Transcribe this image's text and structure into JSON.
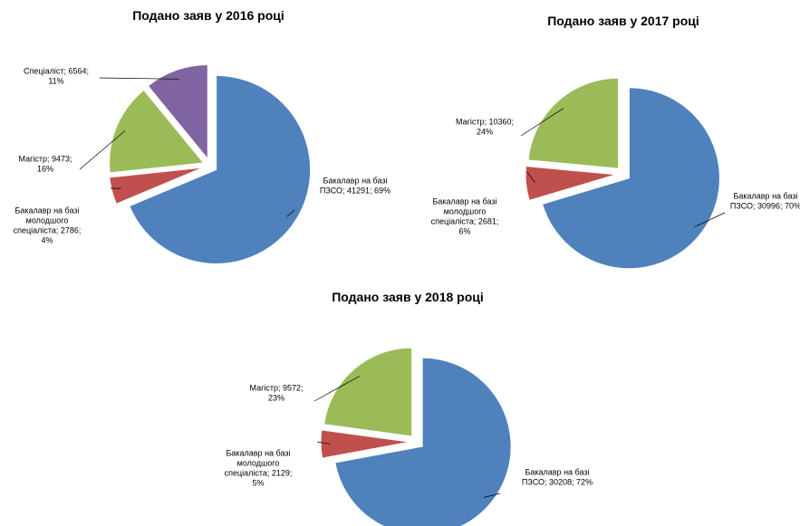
{
  "chart_data": [
    {
      "type": "pie",
      "title": "Подано заяв у 2016 році",
      "values": [
        41291,
        2786,
        9473,
        6564
      ],
      "value_labels": [
        [
          "Бакалавр на базі",
          "ПЗСО; 41291; 69%"
        ],
        [
          "Бакалавр на базі",
          "молодшого",
          "спеціаліста; 2786;",
          "4%"
        ],
        [
          "Магістр; 9473;",
          "16%"
        ],
        [
          "Спеціаліст; 6564;",
          "11%"
        ]
      ],
      "colors": [
        "#4f81bd",
        "#c0504d",
        "#9bbb59",
        "#8064a2"
      ]
    },
    {
      "type": "pie",
      "title": "Подано заяв у 2017 році",
      "values": [
        30996,
        2681,
        10360
      ],
      "value_labels": [
        [
          "Бакалавр на базі",
          "ПЗСО; 30996; 70%"
        ],
        [
          "Бакалавр на базі",
          "молодшого",
          "спеціаліста; 2681;",
          "6%"
        ],
        [
          "Магістр; 10360;",
          "24%"
        ]
      ],
      "colors": [
        "#4f81bd",
        "#c0504d",
        "#9bbb59"
      ]
    },
    {
      "type": "pie",
      "title": "Подано заяв у 2018 році",
      "values": [
        30208,
        2129,
        9572
      ],
      "value_labels": [
        [
          "Бакалавр на базі",
          "ПЗСО; 30208; 72%"
        ],
        [
          "Бакалавр на базі",
          "молодшого",
          "спеціаліста; 2129;",
          "5%"
        ],
        [
          "Магістр; 9572;",
          "23%"
        ]
      ],
      "colors": [
        "#4f81bd",
        "#c0504d",
        "#9bbb59"
      ]
    }
  ]
}
